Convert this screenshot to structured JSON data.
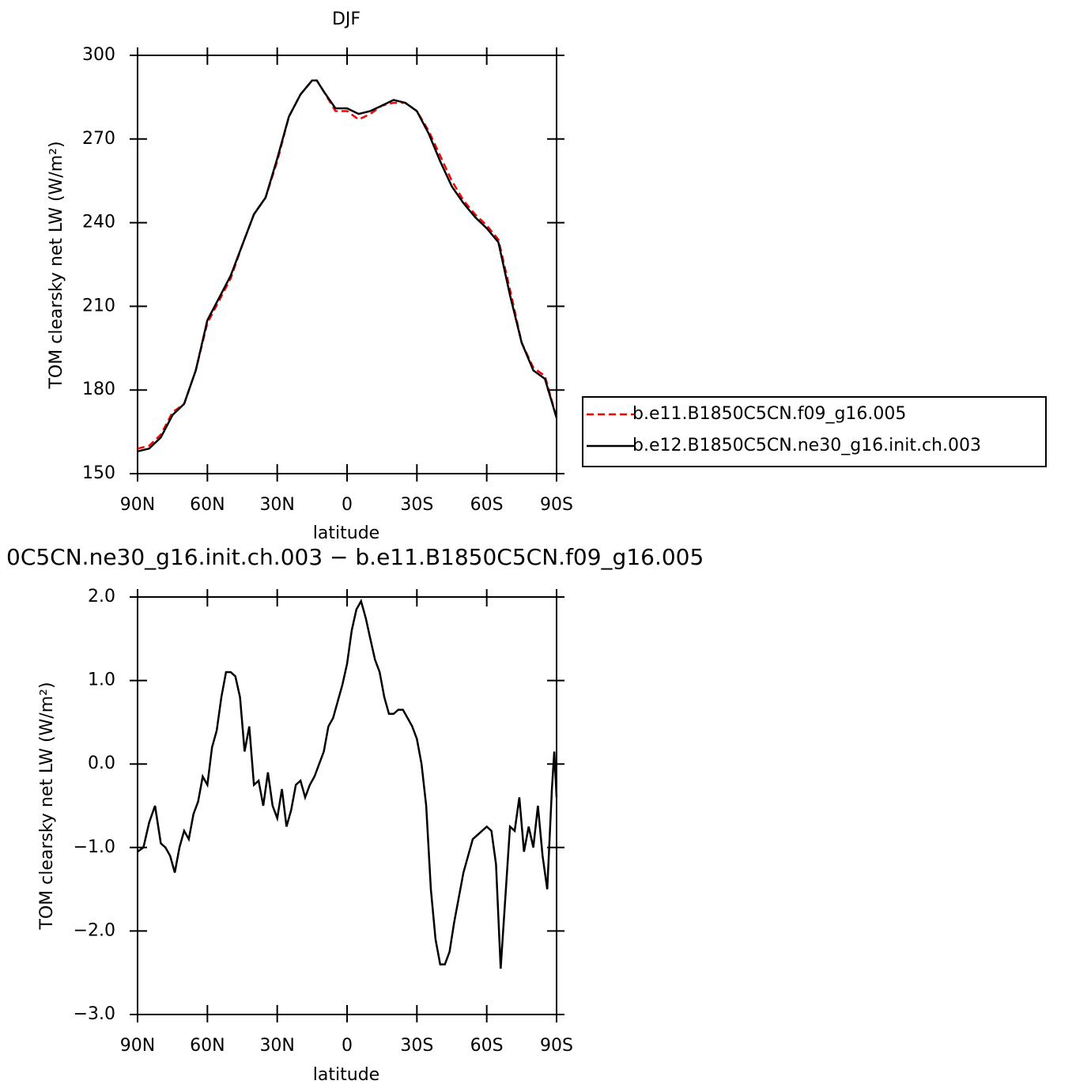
{
  "chart_data": [
    {
      "type": "line",
      "title": "DJF",
      "xlabel": "latitude",
      "ylabel": "TOM clearsky net LW (W/m²)",
      "xlim": [
        90,
        -90
      ],
      "xticks": [
        {
          "value": 90,
          "label": "90N"
        },
        {
          "value": 60,
          "label": "60N"
        },
        {
          "value": 30,
          "label": "30N"
        },
        0,
        {
          "value": -30,
          "label": "30S"
        },
        {
          "value": -60,
          "label": "60S"
        },
        {
          "value": -90,
          "label": "90S"
        }
      ],
      "ylim": [
        150,
        300
      ],
      "yticks": [
        150,
        180,
        210,
        240,
        270,
        300
      ],
      "legend": "right",
      "x": [
        90,
        85,
        80,
        75,
        70,
        65,
        60,
        55,
        50,
        45,
        40,
        35,
        30,
        25,
        20,
        15,
        13,
        10,
        5,
        0,
        -5,
        -10,
        -15,
        -20,
        -25,
        -30,
        -35,
        -40,
        -45,
        -50,
        -55,
        -60,
        -65,
        -70,
        -75,
        -80,
        -85,
        -90
      ],
      "series": [
        {
          "name": "b.e11.B1850C5CN.f09_g16.005",
          "color": "#ff0000",
          "line_style": "dashed",
          "values": [
            159,
            160,
            164,
            172,
            175,
            187,
            204,
            212,
            220,
            232,
            243,
            249,
            262,
            278,
            286,
            291,
            291,
            287,
            280,
            280,
            277,
            279,
            282,
            283,
            283,
            280,
            273,
            264,
            255,
            248,
            243,
            239,
            234,
            216,
            197,
            188,
            185,
            170
          ]
        },
        {
          "name": "b.e12.B1850C5CN.ne30_g16.init.ch.003",
          "color": "#000000",
          "line_style": "solid",
          "values": [
            158,
            159,
            163,
            171,
            175,
            187,
            205,
            213,
            221,
            232,
            243,
            249,
            263,
            278,
            286,
            291,
            291,
            287,
            281,
            281,
            279,
            280,
            282,
            284,
            283,
            280,
            272,
            262,
            253,
            247,
            242,
            238,
            233,
            214,
            197,
            187,
            184,
            170
          ]
        }
      ]
    },
    {
      "type": "line",
      "title": "0C5CN.ne30_g16.init.ch.003 − b.e11.B1850C5CN.f09_g16.005",
      "xlabel": "latitude",
      "ylabel": "TOM clearsky net LW (W/m²)",
      "xlim": [
        90,
        -90
      ],
      "xticks": [
        {
          "value": 90,
          "label": "90N"
        },
        {
          "value": 60,
          "label": "60N"
        },
        {
          "value": 30,
          "label": "30N"
        },
        0,
        {
          "value": -30,
          "label": "30S"
        },
        {
          "value": -60,
          "label": "60S"
        },
        {
          "value": -90,
          "label": "90S"
        }
      ],
      "ylim": [
        -3,
        2
      ],
      "yticks": [
        {
          "value": -3,
          "label": "−3.0"
        },
        {
          "value": -2,
          "label": "−2.0"
        },
        {
          "value": -1,
          "label": "−1.0"
        },
        {
          "value": 0,
          "label": "0.0"
        },
        {
          "value": 1,
          "label": "1.0"
        },
        {
          "value": 2,
          "label": "2.0"
        }
      ],
      "x": [
        90,
        87.5,
        85,
        82.5,
        80,
        78,
        76,
        74,
        72,
        70,
        68,
        66,
        64,
        62,
        60,
        58,
        56,
        54,
        52,
        50,
        48,
        46,
        44,
        42,
        40,
        38,
        36,
        34,
        32,
        30,
        28,
        26,
        24,
        22,
        20,
        18,
        16,
        14,
        12,
        10,
        8,
        6,
        4,
        2,
        0,
        -2,
        -4,
        -6,
        -8,
        -10,
        -12,
        -14,
        -16,
        -18,
        -20,
        -22,
        -24,
        -26,
        -28,
        -30,
        -32,
        -34,
        -36,
        -38,
        -40,
        -42,
        -44,
        -46,
        -48,
        -50,
        -52,
        -54,
        -56,
        -58,
        -60,
        -62,
        -64,
        -66,
        -68,
        -70,
        -72,
        -74,
        -76,
        -78,
        -80,
        -82,
        -84,
        -86,
        -88,
        -89,
        -90
      ],
      "series": [
        {
          "color": "#000000",
          "values": [
            -1.05,
            -1.0,
            -0.7,
            -0.5,
            -0.95,
            -1.0,
            -1.1,
            -1.3,
            -1.0,
            -0.8,
            -0.9,
            -0.6,
            -0.45,
            -0.15,
            -0.25,
            0.2,
            0.4,
            0.8,
            1.1,
            1.1,
            1.05,
            0.8,
            0.15,
            0.45,
            -0.25,
            -0.2,
            -0.5,
            -0.1,
            -0.5,
            -0.65,
            -0.3,
            -0.75,
            -0.55,
            -0.25,
            -0.2,
            -0.4,
            -0.25,
            -0.15,
            0.0,
            0.15,
            0.45,
            0.55,
            0.75,
            0.95,
            1.2,
            1.6,
            1.85,
            1.95,
            1.75,
            1.5,
            1.25,
            1.1,
            0.8,
            0.6,
            0.6,
            0.65,
            0.65,
            0.55,
            0.45,
            0.3,
            0.0,
            -0.5,
            -1.5,
            -2.1,
            -2.4,
            -2.4,
            -2.25,
            -1.9,
            -1.6,
            -1.3,
            -1.1,
            -0.9,
            -0.85,
            -0.8,
            -0.75,
            -0.8,
            -1.2,
            -2.45,
            -1.6,
            -0.75,
            -0.8,
            -0.4,
            -1.05,
            -0.75,
            -1.0,
            -0.5,
            -1.1,
            -1.5,
            -0.3,
            0.15,
            -0.4
          ]
        }
      ]
    }
  ]
}
